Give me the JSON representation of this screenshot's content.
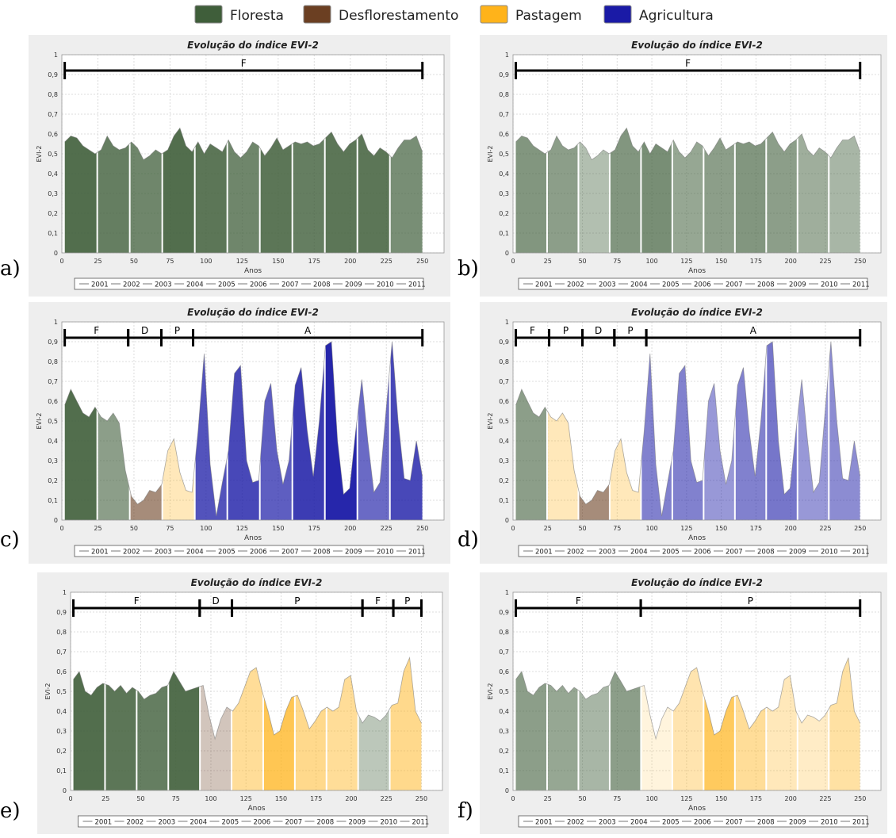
{
  "legend": [
    {
      "name": "Floresta",
      "color": "#3f5e3a"
    },
    {
      "name": "Desflorestamento",
      "color": "#6b3f22"
    },
    {
      "name": "Pastagem",
      "color": "#ffb31a"
    },
    {
      "name": "Agricultura",
      "color": "#1a1aa6"
    }
  ],
  "chart_data": [
    {
      "panel": "a)",
      "type": "area",
      "title": "Evolução do índice EVI-2",
      "xlabel": "Anos",
      "ylabel": "EVI-2",
      "xlim": [
        0,
        265
      ],
      "ylim": [
        0,
        1
      ],
      "xticks": [
        "0",
        "25",
        "50",
        "75",
        "100",
        "125",
        "150",
        "175",
        "200",
        "225",
        "250"
      ],
      "yticks": [
        "0",
        "0,1",
        "0,2",
        "0,3",
        "0,4",
        "0,5",
        "0,6",
        "0,7",
        "0,8",
        "0,9",
        "1"
      ],
      "series_legend": [
        "2001",
        "2002",
        "2003",
        "2004",
        "2005",
        "2006",
        "2007",
        "2008",
        "2009",
        "2010",
        "2011"
      ],
      "segments": [
        {
          "label": "F",
          "start": 2,
          "end": 250
        }
      ],
      "year_classes": [
        "F",
        "F",
        "F",
        "F",
        "F",
        "F",
        "F",
        "F",
        "F",
        "F",
        "F"
      ],
      "year_opacity": [
        0.9,
        0.8,
        0.75,
        0.9,
        0.85,
        0.75,
        0.85,
        0.8,
        0.85,
        0.85,
        0.7
      ],
      "values": [
        0.56,
        0.59,
        0.58,
        0.54,
        0.52,
        0.5,
        0.52,
        0.59,
        0.54,
        0.52,
        0.53,
        0.56,
        0.53,
        0.47,
        0.49,
        0.52,
        0.5,
        0.52,
        0.59,
        0.63,
        0.54,
        0.51,
        0.56,
        0.5,
        0.55,
        0.53,
        0.51,
        0.57,
        0.51,
        0.48,
        0.51,
        0.56,
        0.54,
        0.49,
        0.53,
        0.58,
        0.52,
        0.54,
        0.56,
        0.55,
        0.56,
        0.54,
        0.55,
        0.58,
        0.61,
        0.55,
        0.51,
        0.55,
        0.57,
        0.6,
        0.52,
        0.49,
        0.53,
        0.51,
        0.48,
        0.53,
        0.57,
        0.57,
        0.59,
        0.51
      ]
    },
    {
      "panel": "b)",
      "type": "area",
      "title": "Evolução do índice EVI-2",
      "xlabel": "Anos",
      "ylabel": "EVI-2",
      "xlim": [
        0,
        265
      ],
      "ylim": [
        0,
        1
      ],
      "xticks": [
        "0",
        "25",
        "50",
        "75",
        "100",
        "125",
        "150",
        "175",
        "200",
        "225",
        "250"
      ],
      "yticks": [
        "0",
        "0,1",
        "0,2",
        "0,3",
        "0,4",
        "0,5",
        "0,6",
        "0,7",
        "0,8",
        "0,9",
        "1"
      ],
      "series_legend": [
        "2001",
        "2002",
        "2003",
        "2004",
        "2005",
        "2006",
        "2007",
        "2008",
        "2009",
        "2010",
        "2011"
      ],
      "segments": [
        {
          "label": "F",
          "start": 2,
          "end": 250
        }
      ],
      "year_classes": [
        "F",
        "F",
        "F",
        "F",
        "F",
        "F",
        "F",
        "F",
        "F",
        "F",
        "F"
      ],
      "year_opacity": [
        0.65,
        0.6,
        0.4,
        0.65,
        0.7,
        0.55,
        0.6,
        0.65,
        0.6,
        0.5,
        0.45
      ],
      "values": [
        0.56,
        0.59,
        0.58,
        0.54,
        0.52,
        0.5,
        0.52,
        0.59,
        0.54,
        0.52,
        0.53,
        0.56,
        0.53,
        0.47,
        0.49,
        0.52,
        0.5,
        0.52,
        0.59,
        0.63,
        0.54,
        0.51,
        0.56,
        0.5,
        0.55,
        0.53,
        0.51,
        0.57,
        0.51,
        0.48,
        0.51,
        0.56,
        0.54,
        0.49,
        0.53,
        0.58,
        0.52,
        0.54,
        0.56,
        0.55,
        0.56,
        0.54,
        0.55,
        0.58,
        0.61,
        0.55,
        0.51,
        0.55,
        0.57,
        0.6,
        0.52,
        0.49,
        0.53,
        0.51,
        0.48,
        0.53,
        0.57,
        0.57,
        0.59,
        0.51
      ]
    },
    {
      "panel": "c)",
      "type": "area",
      "title": "Evolução do índice EVI-2",
      "xlabel": "Anos",
      "ylabel": "EVI-2",
      "xlim": [
        0,
        265
      ],
      "ylim": [
        0,
        1
      ],
      "xticks": [
        "0",
        "25",
        "50",
        "75",
        "100",
        "125",
        "150",
        "175",
        "200",
        "225",
        "250"
      ],
      "yticks": [
        "0",
        "0,1",
        "0,2",
        "0,3",
        "0,4",
        "0,5",
        "0,6",
        "0,7",
        "0,8",
        "0,9",
        "1"
      ],
      "series_legend": [
        "2001",
        "2002",
        "2003",
        "2004",
        "2005",
        "2006",
        "2007",
        "2008",
        "2009",
        "2010",
        "2011"
      ],
      "segments": [
        {
          "label": "F",
          "start": 2,
          "end": 46
        },
        {
          "label": "D",
          "start": 46,
          "end": 69
        },
        {
          "label": "P",
          "start": 69,
          "end": 91
        },
        {
          "label": "A",
          "start": 91,
          "end": 250
        }
      ],
      "year_classes": [
        "F",
        "F",
        "D",
        "P",
        "A",
        "A",
        "A",
        "A",
        "A",
        "A",
        "A"
      ],
      "year_opacity": [
        0.9,
        0.6,
        0.6,
        0.3,
        0.75,
        0.8,
        0.7,
        0.85,
        0.95,
        0.65,
        0.8
      ],
      "values": [
        0.58,
        0.66,
        0.6,
        0.54,
        0.52,
        0.57,
        0.52,
        0.5,
        0.54,
        0.49,
        0.25,
        0.12,
        0.08,
        0.1,
        0.15,
        0.14,
        0.18,
        0.35,
        0.41,
        0.24,
        0.15,
        0.14,
        0.45,
        0.84,
        0.28,
        0.02,
        0.19,
        0.35,
        0.74,
        0.78,
        0.3,
        0.19,
        0.2,
        0.6,
        0.69,
        0.35,
        0.18,
        0.3,
        0.68,
        0.77,
        0.45,
        0.22,
        0.5,
        0.88,
        0.9,
        0.4,
        0.13,
        0.16,
        0.45,
        0.71,
        0.4,
        0.14,
        0.19,
        0.55,
        0.9,
        0.5,
        0.21,
        0.2,
        0.4,
        0.22
      ]
    },
    {
      "panel": "d)",
      "type": "area",
      "title": "Evolução do índice EVI-2",
      "xlabel": "Anos",
      "ylabel": "EVI-2",
      "xlim": [
        0,
        265
      ],
      "ylim": [
        0,
        1
      ],
      "xticks": [
        "0",
        "25",
        "50",
        "75",
        "100",
        "125",
        "150",
        "175",
        "200",
        "225",
        "250"
      ],
      "yticks": [
        "0",
        "0,1",
        "0,2",
        "0,3",
        "0,4",
        "0,5",
        "0,6",
        "0,7",
        "0,8",
        "0,9",
        "1"
      ],
      "series_legend": [
        "2001",
        "2002",
        "2003",
        "2004",
        "2005",
        "2006",
        "2007",
        "2008",
        "2009",
        "2010",
        "2011"
      ],
      "segments": [
        {
          "label": "F",
          "start": 2,
          "end": 26
        },
        {
          "label": "P",
          "start": 26,
          "end": 50
        },
        {
          "label": "D",
          "start": 50,
          "end": 73
        },
        {
          "label": "P",
          "start": 73,
          "end": 96
        },
        {
          "label": "A",
          "start": 96,
          "end": 250
        }
      ],
      "year_classes": [
        "F",
        "P",
        "D",
        "P",
        "A",
        "A",
        "A",
        "A",
        "A",
        "A",
        "A"
      ],
      "year_opacity": [
        0.6,
        0.3,
        0.6,
        0.3,
        0.55,
        0.55,
        0.45,
        0.55,
        0.6,
        0.45,
        0.5
      ],
      "values": [
        0.58,
        0.66,
        0.6,
        0.54,
        0.52,
        0.57,
        0.52,
        0.5,
        0.54,
        0.49,
        0.25,
        0.12,
        0.08,
        0.1,
        0.15,
        0.14,
        0.18,
        0.35,
        0.41,
        0.24,
        0.15,
        0.14,
        0.45,
        0.84,
        0.28,
        0.02,
        0.19,
        0.35,
        0.74,
        0.78,
        0.3,
        0.19,
        0.2,
        0.6,
        0.69,
        0.35,
        0.18,
        0.3,
        0.68,
        0.77,
        0.45,
        0.22,
        0.5,
        0.88,
        0.9,
        0.4,
        0.13,
        0.16,
        0.45,
        0.71,
        0.4,
        0.14,
        0.19,
        0.55,
        0.9,
        0.5,
        0.21,
        0.2,
        0.4,
        0.22
      ]
    },
    {
      "panel": "e)",
      "type": "area",
      "title": "Evolução do índice EVI-2",
      "xlabel": "Anos",
      "ylabel": "EVI-2",
      "xlim": [
        0,
        265
      ],
      "ylim": [
        0,
        1
      ],
      "xticks": [
        "0",
        "25",
        "50",
        "75",
        "100",
        "125",
        "150",
        "175",
        "200",
        "225",
        "250"
      ],
      "yticks": [
        "0",
        "0,1",
        "0,2",
        "0,3",
        "0,4",
        "0,5",
        "0,6",
        "0,7",
        "0,8",
        "0,9",
        "1"
      ],
      "series_legend": [
        "2001",
        "2002",
        "2003",
        "2004",
        "2005",
        "2006",
        "2007",
        "2008",
        "2009",
        "2010",
        "2011"
      ],
      "segments": [
        {
          "label": "F",
          "start": 2,
          "end": 92
        },
        {
          "label": "D",
          "start": 92,
          "end": 115
        },
        {
          "label": "P",
          "start": 115,
          "end": 208
        },
        {
          "label": "F",
          "start": 208,
          "end": 230
        },
        {
          "label": "P",
          "start": 230,
          "end": 250
        }
      ],
      "year_classes": [
        "F",
        "F",
        "F",
        "F",
        "D",
        "P",
        "P",
        "P",
        "P",
        "F",
        "P"
      ],
      "year_opacity": [
        0.9,
        0.85,
        0.8,
        0.9,
        0.3,
        0.45,
        0.75,
        0.5,
        0.45,
        0.35,
        0.5
      ],
      "values": [
        0.56,
        0.6,
        0.5,
        0.48,
        0.52,
        0.54,
        0.53,
        0.5,
        0.53,
        0.49,
        0.52,
        0.5,
        0.46,
        0.48,
        0.49,
        0.52,
        0.53,
        0.6,
        0.55,
        0.5,
        0.51,
        0.52,
        0.53,
        0.38,
        0.26,
        0.36,
        0.42,
        0.4,
        0.44,
        0.52,
        0.6,
        0.62,
        0.5,
        0.4,
        0.28,
        0.3,
        0.4,
        0.47,
        0.48,
        0.4,
        0.31,
        0.35,
        0.4,
        0.42,
        0.4,
        0.42,
        0.56,
        0.58,
        0.4,
        0.34,
        0.38,
        0.37,
        0.35,
        0.38,
        0.43,
        0.44,
        0.6,
        0.67,
        0.4,
        0.34
      ]
    },
    {
      "panel": "f)",
      "type": "area",
      "title": "Evolução do índice EVI-2",
      "xlabel": "Anos",
      "ylabel": "EVI-2",
      "xlim": [
        0,
        265
      ],
      "ylim": [
        0,
        1
      ],
      "xticks": [
        "0",
        "25",
        "50",
        "75",
        "100",
        "125",
        "150",
        "175",
        "200",
        "225",
        "250"
      ],
      "yticks": [
        "0",
        "0,1",
        "0,2",
        "0,3",
        "0,4",
        "0,5",
        "0,6",
        "0,7",
        "0,8",
        "0,9",
        "1"
      ],
      "series_legend": [
        "2001",
        "2002",
        "2003",
        "2004",
        "2005",
        "2006",
        "2007",
        "2008",
        "2009",
        "2010",
        "2011"
      ],
      "segments": [
        {
          "label": "F",
          "start": 2,
          "end": 92
        },
        {
          "label": "P",
          "start": 92,
          "end": 250
        }
      ],
      "year_classes": [
        "F",
        "F",
        "F",
        "F",
        "P",
        "P",
        "P",
        "P",
        "P",
        "P",
        "P"
      ],
      "year_opacity": [
        0.6,
        0.55,
        0.45,
        0.6,
        0.15,
        0.35,
        0.7,
        0.45,
        0.3,
        0.25,
        0.4
      ],
      "values": [
        0.56,
        0.6,
        0.5,
        0.48,
        0.52,
        0.54,
        0.53,
        0.5,
        0.53,
        0.49,
        0.52,
        0.5,
        0.46,
        0.48,
        0.49,
        0.52,
        0.53,
        0.6,
        0.55,
        0.5,
        0.51,
        0.52,
        0.53,
        0.38,
        0.26,
        0.36,
        0.42,
        0.4,
        0.44,
        0.52,
        0.6,
        0.62,
        0.5,
        0.4,
        0.28,
        0.3,
        0.4,
        0.47,
        0.48,
        0.4,
        0.31,
        0.35,
        0.4,
        0.42,
        0.4,
        0.42,
        0.56,
        0.58,
        0.4,
        0.34,
        0.38,
        0.37,
        0.35,
        0.38,
        0.43,
        0.44,
        0.6,
        0.67,
        0.4,
        0.34
      ]
    }
  ]
}
